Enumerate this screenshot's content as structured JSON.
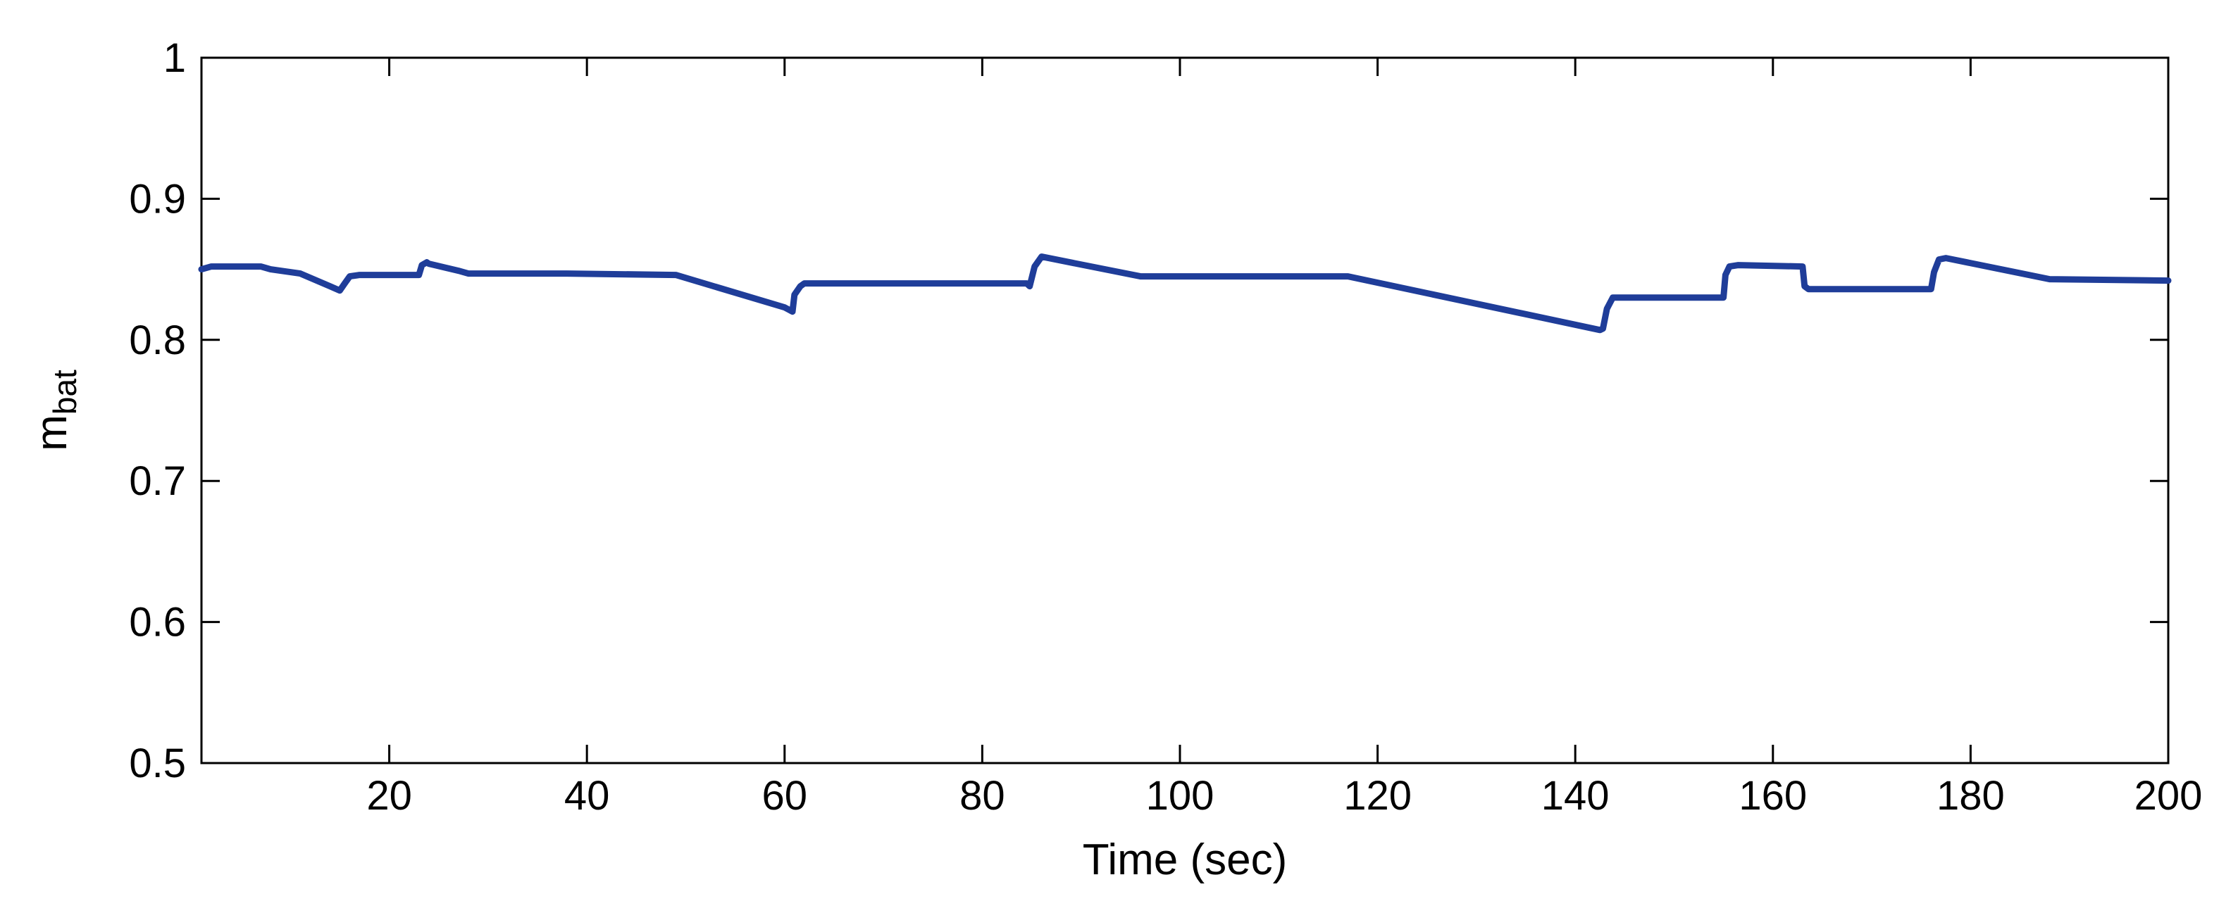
{
  "chart_data": {
    "type": "line",
    "title": "",
    "xlabel": "Time (sec)",
    "ylabel": "m",
    "ylabel_subscript": "bat",
    "xlim": [
      1,
      200
    ],
    "ylim": [
      0.5,
      1
    ],
    "xticks": [
      20,
      40,
      60,
      80,
      100,
      120,
      140,
      160,
      180,
      200
    ],
    "yticks": [
      0.5,
      0.6,
      0.7,
      0.8,
      0.9,
      1
    ],
    "xtick_labels": [
      "20",
      "40",
      "60",
      "80",
      "100",
      "120",
      "140",
      "160",
      "180",
      "200"
    ],
    "ytick_labels": [
      "0.5",
      "0.6",
      "0.7",
      "0.8",
      "0.9",
      "1"
    ],
    "grid": false,
    "legend": "none",
    "series": [
      {
        "color": "#1f3d99",
        "x": [
          1,
          2,
          7,
          8,
          10,
          11,
          14,
          15,
          15.5,
          16,
          17,
          23,
          23.3,
          23.8,
          24,
          27,
          28,
          38,
          49,
          60,
          60.8,
          61,
          61.6,
          62,
          84.5,
          84.8,
          85.3,
          86,
          96,
          117,
          142.5,
          142.8,
          143.2,
          143.8,
          155,
          155.2,
          155.6,
          156.5,
          163,
          163.2,
          163.6,
          164.5,
          176,
          176.3,
          176.8,
          177.5,
          188,
          200
        ],
        "y": [
          0.85,
          0.852,
          0.852,
          0.85,
          0.848,
          0.847,
          0.838,
          0.835,
          0.84,
          0.845,
          0.846,
          0.846,
          0.853,
          0.855,
          0.854,
          0.849,
          0.847,
          0.847,
          0.846,
          0.823,
          0.82,
          0.832,
          0.838,
          0.84,
          0.84,
          0.838,
          0.852,
          0.859,
          0.845,
          0.845,
          0.807,
          0.808,
          0.822,
          0.83,
          0.83,
          0.846,
          0.852,
          0.853,
          0.852,
          0.838,
          0.836,
          0.836,
          0.836,
          0.848,
          0.857,
          0.858,
          0.843,
          0.842
        ]
      }
    ]
  }
}
